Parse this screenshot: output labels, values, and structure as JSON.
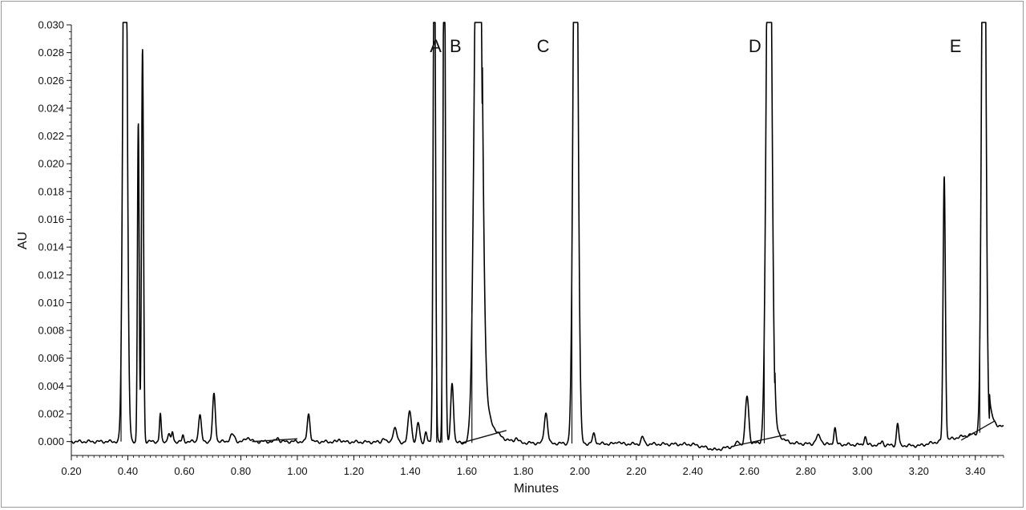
{
  "chart_data": {
    "type": "line",
    "title": "",
    "xlabel": "Minutes",
    "ylabel": "AU",
    "xlim": [
      0.2,
      3.5
    ],
    "ylim": [
      -0.001,
      0.03
    ],
    "x_ticks": [
      "0.20",
      "0.40",
      "0.60",
      "0.80",
      "1.00",
      "1.20",
      "1.40",
      "1.60",
      "1.80",
      "2.00",
      "2.20",
      "2.40",
      "2.60",
      "2.80",
      "3.00",
      "3.20",
      "3.40"
    ],
    "y_ticks": [
      "0.000",
      "0.002",
      "0.004",
      "0.006",
      "0.008",
      "0.010",
      "0.012",
      "0.014",
      "0.016",
      "0.018",
      "0.020",
      "0.022",
      "0.024",
      "0.026",
      "0.028",
      "0.030"
    ],
    "grid": false,
    "line_color": "#000000",
    "peak_labels": [
      {
        "label": "A",
        "x": 1.49
      },
      {
        "label": "B",
        "x": 1.56
      },
      {
        "label": "C",
        "x": 1.87
      },
      {
        "label": "D",
        "x": 2.62
      },
      {
        "label": "E",
        "x": 3.33
      }
    ],
    "series": [
      {
        "peaks": [
          {
            "rt": 0.39,
            "height": 0.05,
            "width": 0.007
          },
          {
            "rt": 0.437,
            "height": 0.023,
            "width": 0.003
          },
          {
            "rt": 0.452,
            "height": 0.0283,
            "width": 0.0035
          },
          {
            "rt": 0.515,
            "height": 0.002,
            "width": 0.003
          },
          {
            "rt": 0.545,
            "height": 0.0006,
            "width": 0.004
          },
          {
            "rt": 0.558,
            "height": 0.0007,
            "width": 0.003
          },
          {
            "rt": 0.595,
            "height": 0.0004,
            "width": 0.003
          },
          {
            "rt": 0.655,
            "height": 0.0019,
            "width": 0.005
          },
          {
            "rt": 0.705,
            "height": 0.0034,
            "width": 0.005
          },
          {
            "rt": 0.77,
            "height": 0.0005,
            "width": 0.008
          },
          {
            "rt": 0.825,
            "height": 0.0003,
            "width": 0.008
          },
          {
            "rt": 0.93,
            "height": 0.0003,
            "width": 0.005
          },
          {
            "rt": 1.04,
            "height": 0.002,
            "width": 0.005
          },
          {
            "rt": 1.15,
            "height": 0.0002,
            "width": 0.005
          },
          {
            "rt": 1.305,
            "height": 0.0003,
            "width": 0.005
          },
          {
            "rt": 1.345,
            "height": 0.001,
            "width": 0.007
          },
          {
            "rt": 1.398,
            "height": 0.0023,
            "width": 0.006
          },
          {
            "rt": 1.428,
            "height": 0.0014,
            "width": 0.005
          },
          {
            "rt": 1.455,
            "height": 0.0007,
            "width": 0.004
          },
          {
            "rt": 1.485,
            "height": 0.04,
            "width": 0.004
          },
          {
            "rt": 1.52,
            "height": 0.04,
            "width": 0.004
          },
          {
            "rt": 1.548,
            "height": 0.0043,
            "width": 0.005
          },
          {
            "rt": 1.64,
            "height": 0.05,
            "width": 0.012
          },
          {
            "rt": 1.775,
            "height": 0.0003,
            "width": 0.006
          },
          {
            "rt": 1.88,
            "height": 0.0022,
            "width": 0.006
          },
          {
            "rt": 1.985,
            "height": 0.05,
            "width": 0.008
          },
          {
            "rt": 2.05,
            "height": 0.0007,
            "width": 0.005
          },
          {
            "rt": 2.135,
            "height": 0.0002,
            "width": 0.005
          },
          {
            "rt": 2.222,
            "height": 0.0005,
            "width": 0.005
          },
          {
            "rt": 2.56,
            "height": 0.0003,
            "width": 0.005
          },
          {
            "rt": 2.592,
            "height": 0.0034,
            "width": 0.006
          },
          {
            "rt": 2.67,
            "height": 0.05,
            "width": 0.009
          },
          {
            "rt": 2.845,
            "height": 0.0006,
            "width": 0.009
          },
          {
            "rt": 2.903,
            "height": 0.0012,
            "width": 0.004
          },
          {
            "rt": 3.01,
            "height": 0.0006,
            "width": 0.004
          },
          {
            "rt": 3.07,
            "height": 0.0003,
            "width": 0.004
          },
          {
            "rt": 3.125,
            "height": 0.0016,
            "width": 0.004
          },
          {
            "rt": 3.29,
            "height": 0.019,
            "width": 0.004
          },
          {
            "rt": 3.43,
            "height": 0.05,
            "width": 0.007
          }
        ],
        "tails": [
          {
            "from": 1.655,
            "amplitude": 0.0045,
            "decay": 0.03
          },
          {
            "from": 2.69,
            "amplitude": 0.0015,
            "decay": 0.02
          },
          {
            "from": 3.45,
            "amplitude": 0.002,
            "decay": 0.015
          }
        ],
        "baseline": [
          [
            0.2,
            0.0
          ],
          [
            1.0,
            0.0
          ],
          [
            2.4,
            -0.0002
          ],
          [
            2.48,
            -0.0006
          ],
          [
            2.6,
            -0.0001
          ],
          [
            3.2,
            -0.0003
          ],
          [
            3.5,
            0.001
          ]
        ]
      }
    ],
    "integration_baselines": [
      [
        [
          1.58,
          -0.0001
        ],
        [
          1.74,
          0.0008
        ]
      ],
      [
        [
          2.55,
          -0.0003
        ],
        [
          2.73,
          0.0005
        ]
      ],
      [
        [
          3.35,
          0.0001
        ],
        [
          3.47,
          0.0015
        ]
      ],
      [
        [
          0.84,
          0.0
        ],
        [
          1.0,
          0.0002
        ]
      ]
    ],
    "drop_lines": [
      0.376,
      0.424,
      0.466,
      1.493,
      1.512,
      1.618,
      1.972,
      2.653,
      3.416
    ]
  }
}
